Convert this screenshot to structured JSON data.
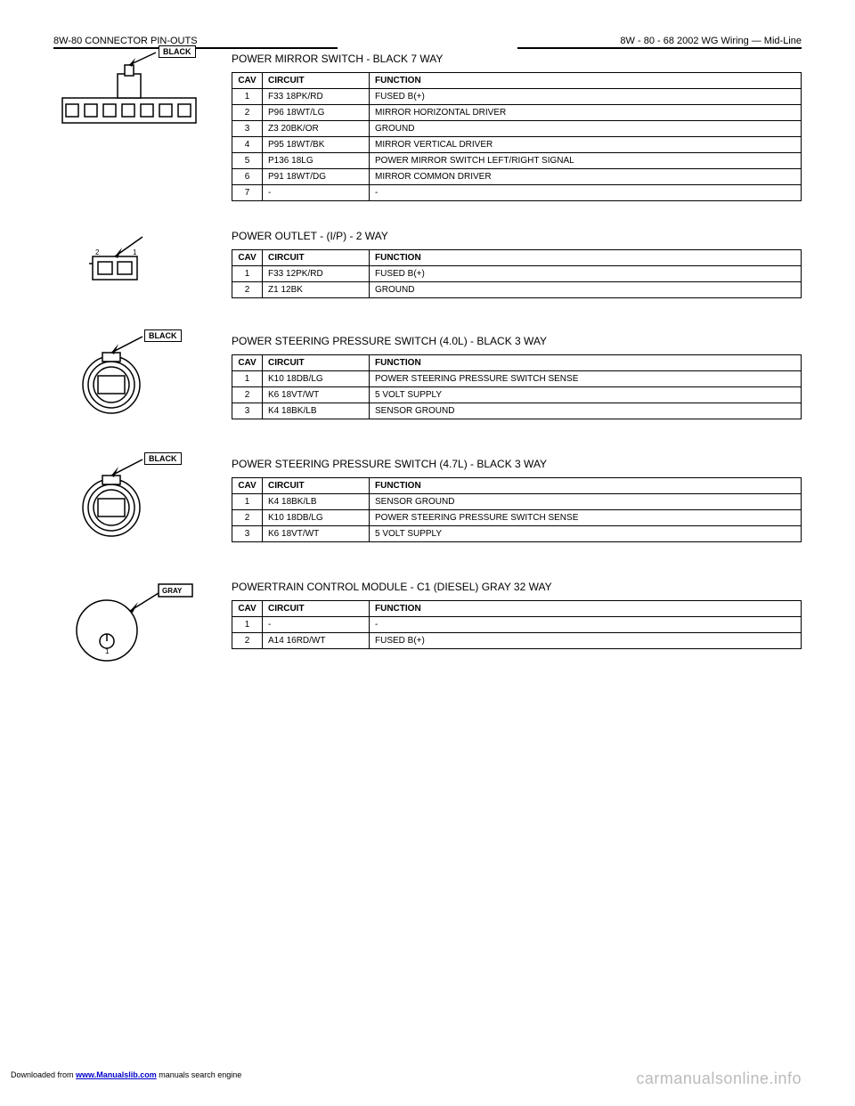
{
  "header": {
    "left": "8W-80 CONNECTOR PIN-OUTS",
    "right": "8W - 80 - 68   2002 WG Wiring — Mid-Line"
  },
  "sections": [
    {
      "title": "POWER MIRROR SWITCH - BLACK 7 WAY",
      "diagram": "conn7",
      "badge": "BLACK",
      "headers": [
        "CAV",
        "CIRCUIT",
        "FUNCTION"
      ],
      "rows": [
        [
          "1",
          "F33 18PK/RD",
          "FUSED B(+)"
        ],
        [
          "2",
          "P96 18WT/LG",
          "MIRROR HORIZONTAL DRIVER"
        ],
        [
          "3",
          "Z3 20BK/OR",
          "GROUND"
        ],
        [
          "4",
          "P95 18WT/BK",
          "MIRROR VERTICAL DRIVER"
        ],
        [
          "5",
          "P136 18LG",
          "POWER MIRROR SWITCH LEFT/RIGHT SIGNAL"
        ],
        [
          "6",
          "P91 18WT/DG",
          "MIRROR COMMON DRIVER"
        ],
        [
          "7",
          "-",
          "-"
        ]
      ]
    },
    {
      "title": "POWER OUTLET - (I/P) - 2 WAY",
      "diagram": "conn2rect",
      "badge": "",
      "headers": [
        "CAV",
        "CIRCUIT",
        "FUNCTION"
      ],
      "rows": [
        [
          "1",
          "F33 12PK/RD",
          "FUSED B(+)"
        ],
        [
          "2",
          "Z1 12BK",
          "GROUND"
        ]
      ]
    },
    {
      "title": "POWER STEERING PRESSURE SWITCH (4.0L) - BLACK 3 WAY",
      "diagram": "conn3round",
      "badge": "BLACK",
      "headers": [
        "CAV",
        "CIRCUIT",
        "FUNCTION"
      ],
      "rows": [
        [
          "1",
          "K10 18DB/LG",
          "POWER STEERING PRESSURE SWITCH SENSE"
        ],
        [
          "2",
          "K6 18VT/WT",
          "5 VOLT SUPPLY"
        ],
        [
          "3",
          "K4 18BK/LB",
          "SENSOR GROUND"
        ]
      ]
    },
    {
      "title": "POWER STEERING PRESSURE SWITCH (4.7L) - BLACK 3 WAY",
      "diagram": "conn3round",
      "badge": "BLACK",
      "headers": [
        "CAV",
        "CIRCUIT",
        "FUNCTION"
      ],
      "rows": [
        [
          "1",
          "K4 18BK/LB",
          "SENSOR GROUND"
        ],
        [
          "2",
          "K10 18DB/LG",
          "POWER STEERING PRESSURE SWITCH SENSE"
        ],
        [
          "3",
          "K6 18VT/WT",
          "5 VOLT SUPPLY"
        ]
      ]
    },
    {
      "title": "POWERTRAIN CONTROL MODULE - C1 (DIESEL) GRAY 32 WAY",
      "diagram": "conn1round",
      "badge": "GRAY",
      "headers": [
        "CAV",
        "CIRCUIT",
        "FUNCTION"
      ],
      "rows": [
        [
          "1",
          "-",
          "-"
        ],
        [
          "2",
          "A14 16RD/WT",
          "FUSED B(+)"
        ]
      ]
    }
  ],
  "footer": {
    "prefix": "Downloaded from ",
    "linkText": "www.Manualslib.com",
    "suffix": " manuals search engine"
  },
  "watermark": "carmanualsonline.info",
  "style": {
    "page_bg": "#ffffff",
    "text_color": "#000000",
    "border_color": "#000000",
    "watermark_color": "#bbbbbb",
    "link_color": "#0000cc",
    "body_font_size": 11,
    "table_font_size": 10
  }
}
